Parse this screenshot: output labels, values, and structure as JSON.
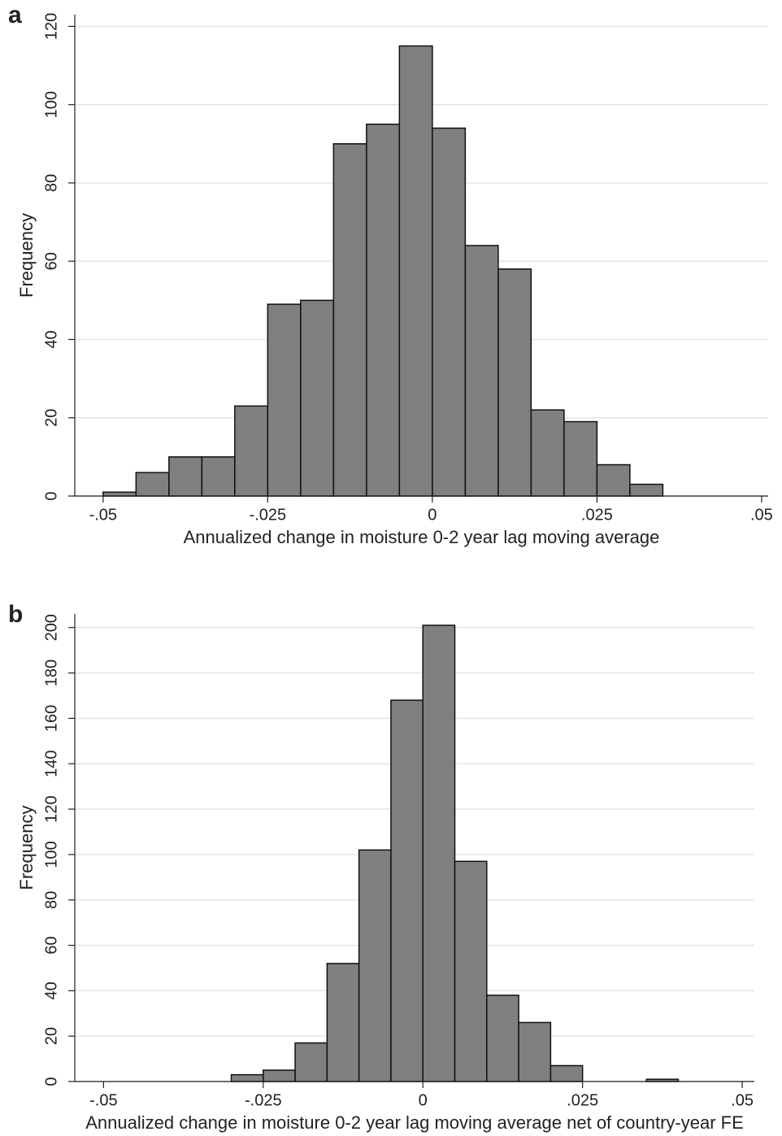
{
  "chart_data": [
    {
      "type": "histogram",
      "panel_label": "a",
      "x_label": "Annualized change in moisture 0-2 year lag moving average",
      "y_label": "Frequency",
      "bins": [
        -0.05,
        -0.045,
        -0.04,
        -0.035,
        -0.03,
        -0.025,
        -0.02,
        -0.015,
        -0.01,
        -0.005,
        0,
        0.005,
        0.01,
        0.015,
        0.02,
        0.025,
        0.03,
        0.035
      ],
      "values": [
        1,
        6,
        10,
        10,
        23,
        49,
        50,
        90,
        95,
        115,
        94,
        64,
        58,
        22,
        19,
        8,
        3
      ],
      "color": "#808080",
      "xlim": [
        -0.0543,
        0.051
      ],
      "ylim": [
        0,
        123
      ],
      "xticks": [
        {
          "value": -0.05,
          "label": "-.05"
        },
        {
          "value": -0.025,
          "label": "-.025"
        },
        0,
        {
          "value": 0.025,
          "label": ".025"
        },
        {
          "value": 0.05,
          "label": ".05"
        }
      ],
      "yticks": [
        0,
        20,
        40,
        60,
        80,
        100,
        120
      ],
      "grid": true
    },
    {
      "type": "histogram",
      "panel_label": "b",
      "x_label": "Annualized change in moisture 0-2 year lag moving average net of country-year FE",
      "y_label": "Frequency",
      "bins": [
        -0.03,
        -0.025,
        -0.02,
        -0.015,
        -0.01,
        -0.005,
        0,
        0.005,
        0.01,
        0.015,
        0.02,
        0.025,
        0.03,
        0.035,
        0.04
      ],
      "values": [
        3,
        5,
        17,
        52,
        102,
        168,
        201,
        97,
        38,
        26,
        7,
        0,
        0,
        1
      ],
      "color": "#808080",
      "xlim": [
        -0.0545,
        0.0519
      ],
      "ylim": [
        0,
        206
      ],
      "xticks": [
        {
          "value": -0.05,
          "label": "-.05"
        },
        {
          "value": -0.025,
          "label": "-.025"
        },
        0,
        {
          "value": 0.025,
          "label": ".025"
        },
        {
          "value": 0.05,
          "label": ".05"
        }
      ],
      "yticks": [
        0,
        20,
        40,
        60,
        80,
        100,
        120,
        140,
        160,
        180,
        200
      ],
      "grid": true
    }
  ]
}
